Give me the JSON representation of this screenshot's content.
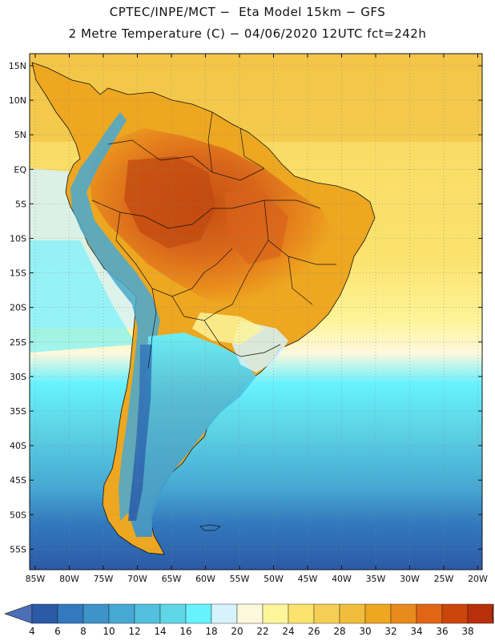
{
  "header": {
    "line1": "CPTEC/INPE/MCT −  Eta Model 15km − GFS",
    "line2": "2 Metre Temperature (C) − 04/06/2020 12UTC fct=242h"
  },
  "map": {
    "region": "South America",
    "lat_labels": [
      "15N",
      "10N",
      "5N",
      "EQ",
      "5S",
      "10S",
      "15S",
      "20S",
      "25S",
      "30S",
      "35S",
      "40S",
      "45S",
      "50S",
      "55S"
    ],
    "lon_labels": [
      "85W",
      "80W",
      "75W",
      "70W",
      "65W",
      "60W",
      "55W",
      "50W",
      "45W",
      "40W",
      "35W",
      "30W",
      "25W",
      "20W"
    ]
  },
  "colorbar": {
    "labels": [
      "4",
      "6",
      "8",
      "10",
      "12",
      "14",
      "16",
      "18",
      "20",
      "22",
      "24",
      "26",
      "28",
      "30",
      "32",
      "34",
      "36",
      "38"
    ],
    "colors": [
      "#2b5aa6",
      "#3279bd",
      "#3e93c8",
      "#46a9d3",
      "#52c0de",
      "#5fd6e6",
      "#66f2ff",
      "#d6f3fb",
      "#fdf8dc",
      "#fdf59a",
      "#fbe36e",
      "#f5cf55",
      "#f1bd3c",
      "#eda720",
      "#e98a1c",
      "#e06616",
      "#cc460c",
      "#b8300a"
    ],
    "low_color": "#4a6fb8",
    "high_color": "#b8300a"
  }
}
